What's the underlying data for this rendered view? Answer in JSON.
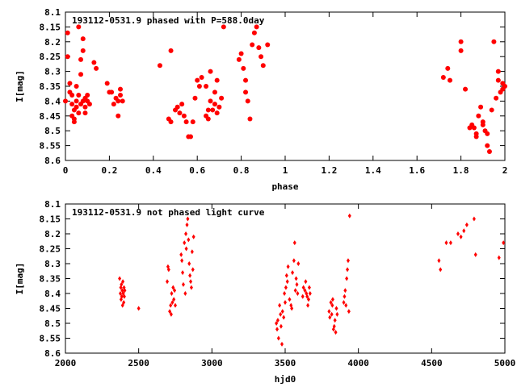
{
  "chart_data": [
    {
      "type": "scatter",
      "title": "193112-0531.9 phased with P=588.0day",
      "xlabel": "phase",
      "ylabel": "I[mag]",
      "xlim": [
        0,
        2
      ],
      "ylim": [
        8.6,
        8.1
      ],
      "y_inverted": true,
      "xticks": [
        "0",
        "0.2",
        "0.4",
        "0.6",
        "0.8",
        "1",
        "1.2",
        "1.4",
        "1.6",
        "1.8",
        "2"
      ],
      "yticks": [
        "8.1",
        "8.15",
        "8.2",
        "8.25",
        "8.3",
        "8.35",
        "8.4",
        "8.45",
        "8.5",
        "8.55",
        "8.6"
      ],
      "grid": false,
      "legend": "none",
      "marker": "filled-circle",
      "color": "#ff0000",
      "series": [
        {
          "x": [
            0.0,
            0.01,
            0.01,
            0.02,
            0.02,
            0.03,
            0.03,
            0.03,
            0.04,
            0.04,
            0.04,
            0.05,
            0.05,
            0.05,
            0.06,
            0.06,
            0.06,
            0.07,
            0.07,
            0.07,
            0.08,
            0.08,
            0.08,
            0.09,
            0.09,
            0.09,
            0.1,
            0.1,
            0.11,
            0.13,
            0.14,
            0.19,
            0.2,
            0.21,
            0.22,
            0.23,
            0.24,
            0.24,
            0.25,
            0.25,
            0.26,
            0.43,
            0.47,
            0.48,
            0.48,
            0.5,
            0.51,
            0.52,
            0.53,
            0.54,
            0.55,
            0.56,
            0.57,
            0.58,
            0.59,
            0.6,
            0.61,
            0.62,
            0.64,
            0.64,
            0.65,
            0.65,
            0.66,
            0.66,
            0.67,
            0.68,
            0.68,
            0.69,
            0.69,
            0.7,
            0.71,
            0.72,
            0.79,
            0.8,
            0.81,
            0.82,
            0.82,
            0.83,
            0.84,
            0.85,
            0.86,
            0.87,
            0.88,
            0.89,
            0.9,
            0.92,
            1.72,
            1.74,
            1.75,
            1.8,
            1.8,
            1.82,
            1.84,
            1.85,
            1.86,
            1.87,
            1.87,
            1.88,
            1.89,
            1.9,
            1.9,
            1.91,
            1.92,
            1.92,
            1.93,
            1.94,
            1.95,
            1.96,
            1.97,
            1.97,
            1.98,
            1.99,
            1.99,
            2.0
          ],
          "y": [
            8.4,
            8.17,
            8.25,
            8.34,
            8.37,
            8.38,
            8.41,
            8.45,
            8.46,
            8.43,
            8.47,
            8.35,
            8.4,
            8.42,
            8.15,
            8.38,
            8.44,
            8.26,
            8.31,
            8.41,
            8.19,
            8.23,
            8.4,
            8.39,
            8.42,
            8.44,
            8.4,
            8.38,
            8.41,
            8.27,
            8.29,
            8.34,
            8.37,
            8.37,
            8.41,
            8.39,
            8.4,
            8.45,
            8.38,
            8.36,
            8.4,
            8.28,
            8.46,
            8.23,
            8.47,
            8.43,
            8.42,
            8.44,
            8.41,
            8.45,
            8.47,
            8.52,
            8.52,
            8.47,
            8.39,
            8.33,
            8.35,
            8.32,
            8.35,
            8.45,
            8.43,
            8.46,
            8.4,
            8.3,
            8.43,
            8.37,
            8.41,
            8.33,
            8.44,
            8.42,
            8.39,
            8.15,
            8.26,
            8.24,
            8.29,
            8.33,
            8.37,
            8.4,
            8.46,
            8.21,
            8.17,
            8.15,
            8.22,
            8.25,
            8.28,
            8.21,
            8.32,
            8.29,
            8.33,
            8.2,
            8.23,
            8.36,
            8.49,
            8.48,
            8.49,
            8.51,
            8.52,
            8.45,
            8.42,
            8.48,
            8.47,
            8.5,
            8.51,
            8.55,
            8.57,
            8.43,
            8.2,
            8.39,
            8.33,
            8.3,
            8.37,
            8.34,
            8.36,
            8.35
          ]
        }
      ]
    },
    {
      "type": "scatter",
      "title": "193112-0531.9 not phased light curve",
      "xlabel": "hjd0",
      "ylabel": "I[mag]",
      "xlim": [
        2000,
        5000
      ],
      "ylim": [
        8.6,
        8.1
      ],
      "y_inverted": true,
      "xticks": [
        "2000",
        "2500",
        "3000",
        "3500",
        "4000",
        "4500",
        "5000"
      ],
      "yticks": [
        "8.1",
        "8.15",
        "8.2",
        "8.25",
        "8.3",
        "8.35",
        "8.4",
        "8.45",
        "8.5",
        "8.55",
        "8.6"
      ],
      "grid": false,
      "legend": "none",
      "marker": "filled-diamond",
      "color": "#ff0000",
      "series": [
        {
          "x": [
            2370,
            2375,
            2378,
            2380,
            2382,
            2385,
            2388,
            2390,
            2392,
            2395,
            2398,
            2400,
            2402,
            2405,
            2500,
            2695,
            2700,
            2705,
            2712,
            2718,
            2722,
            2725,
            2730,
            2735,
            2740,
            2745,
            2750,
            2790,
            2795,
            2800,
            2805,
            2812,
            2818,
            2822,
            2825,
            2830,
            2835,
            2840,
            2845,
            2850,
            2855,
            2860,
            2865,
            2870,
            2875,
            3440,
            3445,
            3450,
            3455,
            3462,
            3468,
            3472,
            3478,
            3482,
            3490,
            3495,
            3500,
            3505,
            3510,
            3515,
            3520,
            3530,
            3540,
            3545,
            3550,
            3560,
            3565,
            3570,
            3575,
            3580,
            3585,
            3590,
            3620,
            3625,
            3635,
            3640,
            3645,
            3650,
            3655,
            3660,
            3665,
            3670,
            3800,
            3805,
            3812,
            3818,
            3822,
            3825,
            3830,
            3835,
            3840,
            3845,
            3850,
            3855,
            3900,
            3905,
            3910,
            3915,
            3920,
            3925,
            3930,
            3935,
            3940,
            4550,
            4560,
            4600,
            4630,
            4680,
            4700,
            4720,
            4740,
            4790,
            4800,
            4960,
            4990
          ],
          "y": [
            8.35,
            8.4,
            8.38,
            8.42,
            8.37,
            8.41,
            8.39,
            8.44,
            8.36,
            8.4,
            8.43,
            8.38,
            8.41,
            8.39,
            8.45,
            8.36,
            8.31,
            8.32,
            8.46,
            8.44,
            8.47,
            8.4,
            8.43,
            8.38,
            8.42,
            8.39,
            8.44,
            8.27,
            8.29,
            8.33,
            8.37,
            8.23,
            8.4,
            8.2,
            8.25,
            8.17,
            8.15,
            8.22,
            8.3,
            8.34,
            8.36,
            8.38,
            8.26,
            8.32,
            8.21,
            8.5,
            8.52,
            8.49,
            8.55,
            8.44,
            8.47,
            8.51,
            8.57,
            8.46,
            8.48,
            8.4,
            8.43,
            8.38,
            8.34,
            8.36,
            8.31,
            8.42,
            8.44,
            8.45,
            8.33,
            8.29,
            8.23,
            8.39,
            8.35,
            8.37,
            8.4,
            8.3,
            8.41,
            8.38,
            8.39,
            8.36,
            8.4,
            8.41,
            8.44,
            8.42,
            8.38,
            8.4,
            8.46,
            8.48,
            8.43,
            8.47,
            8.44,
            8.42,
            8.52,
            8.51,
            8.49,
            8.53,
            8.45,
            8.47,
            8.43,
            8.41,
            8.39,
            8.44,
            8.35,
            8.32,
            8.29,
            8.46,
            8.14,
            8.29,
            8.32,
            8.23,
            8.23,
            8.2,
            8.21,
            8.19,
            8.17,
            8.15,
            8.27,
            8.28,
            8.23
          ]
        }
      ]
    }
  ]
}
